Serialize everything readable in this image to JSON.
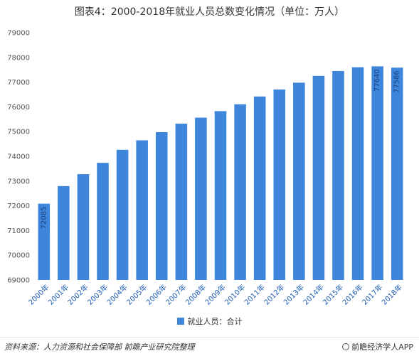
{
  "title": "图表4：2000-2018年就业人员总数变化情况（单位：万人）",
  "legend": {
    "label": "就业人员：合计",
    "color": "#3d86dc"
  },
  "footer": {
    "source": "资料来源：人力资源和社会保障部 前瞻产业研究院整理",
    "brand": "前瞻经济学人APP"
  },
  "chart_data": {
    "type": "bar",
    "categories": [
      "2000年",
      "2001年",
      "2002年",
      "2003年",
      "2004年",
      "2005年",
      "2006年",
      "2007年",
      "2008年",
      "2009年",
      "2010年",
      "2011年",
      "2012年",
      "2013年",
      "2014年",
      "2015年",
      "2016年",
      "2017年",
      "2018年"
    ],
    "series": [
      {
        "name": "就业人员：合计",
        "values": [
          72085,
          72797,
          73280,
          73736,
          74264,
          74647,
          74978,
          75321,
          75564,
          75828,
          76105,
          76420,
          76704,
          76977,
          77253,
          77451,
          77603,
          77640,
          77586
        ]
      }
    ],
    "data_labels": [
      {
        "index": 0,
        "text": "72085"
      },
      {
        "index": 17,
        "text": "77640"
      },
      {
        "index": 18,
        "text": "77586"
      }
    ],
    "ylim": [
      69000,
      79000
    ],
    "yticks": [
      69000,
      70000,
      71000,
      72000,
      73000,
      74000,
      75000,
      76000,
      77000,
      78000,
      79000
    ],
    "grid": false,
    "legend_position": "bottom",
    "bar_color": "#3d86dc"
  }
}
